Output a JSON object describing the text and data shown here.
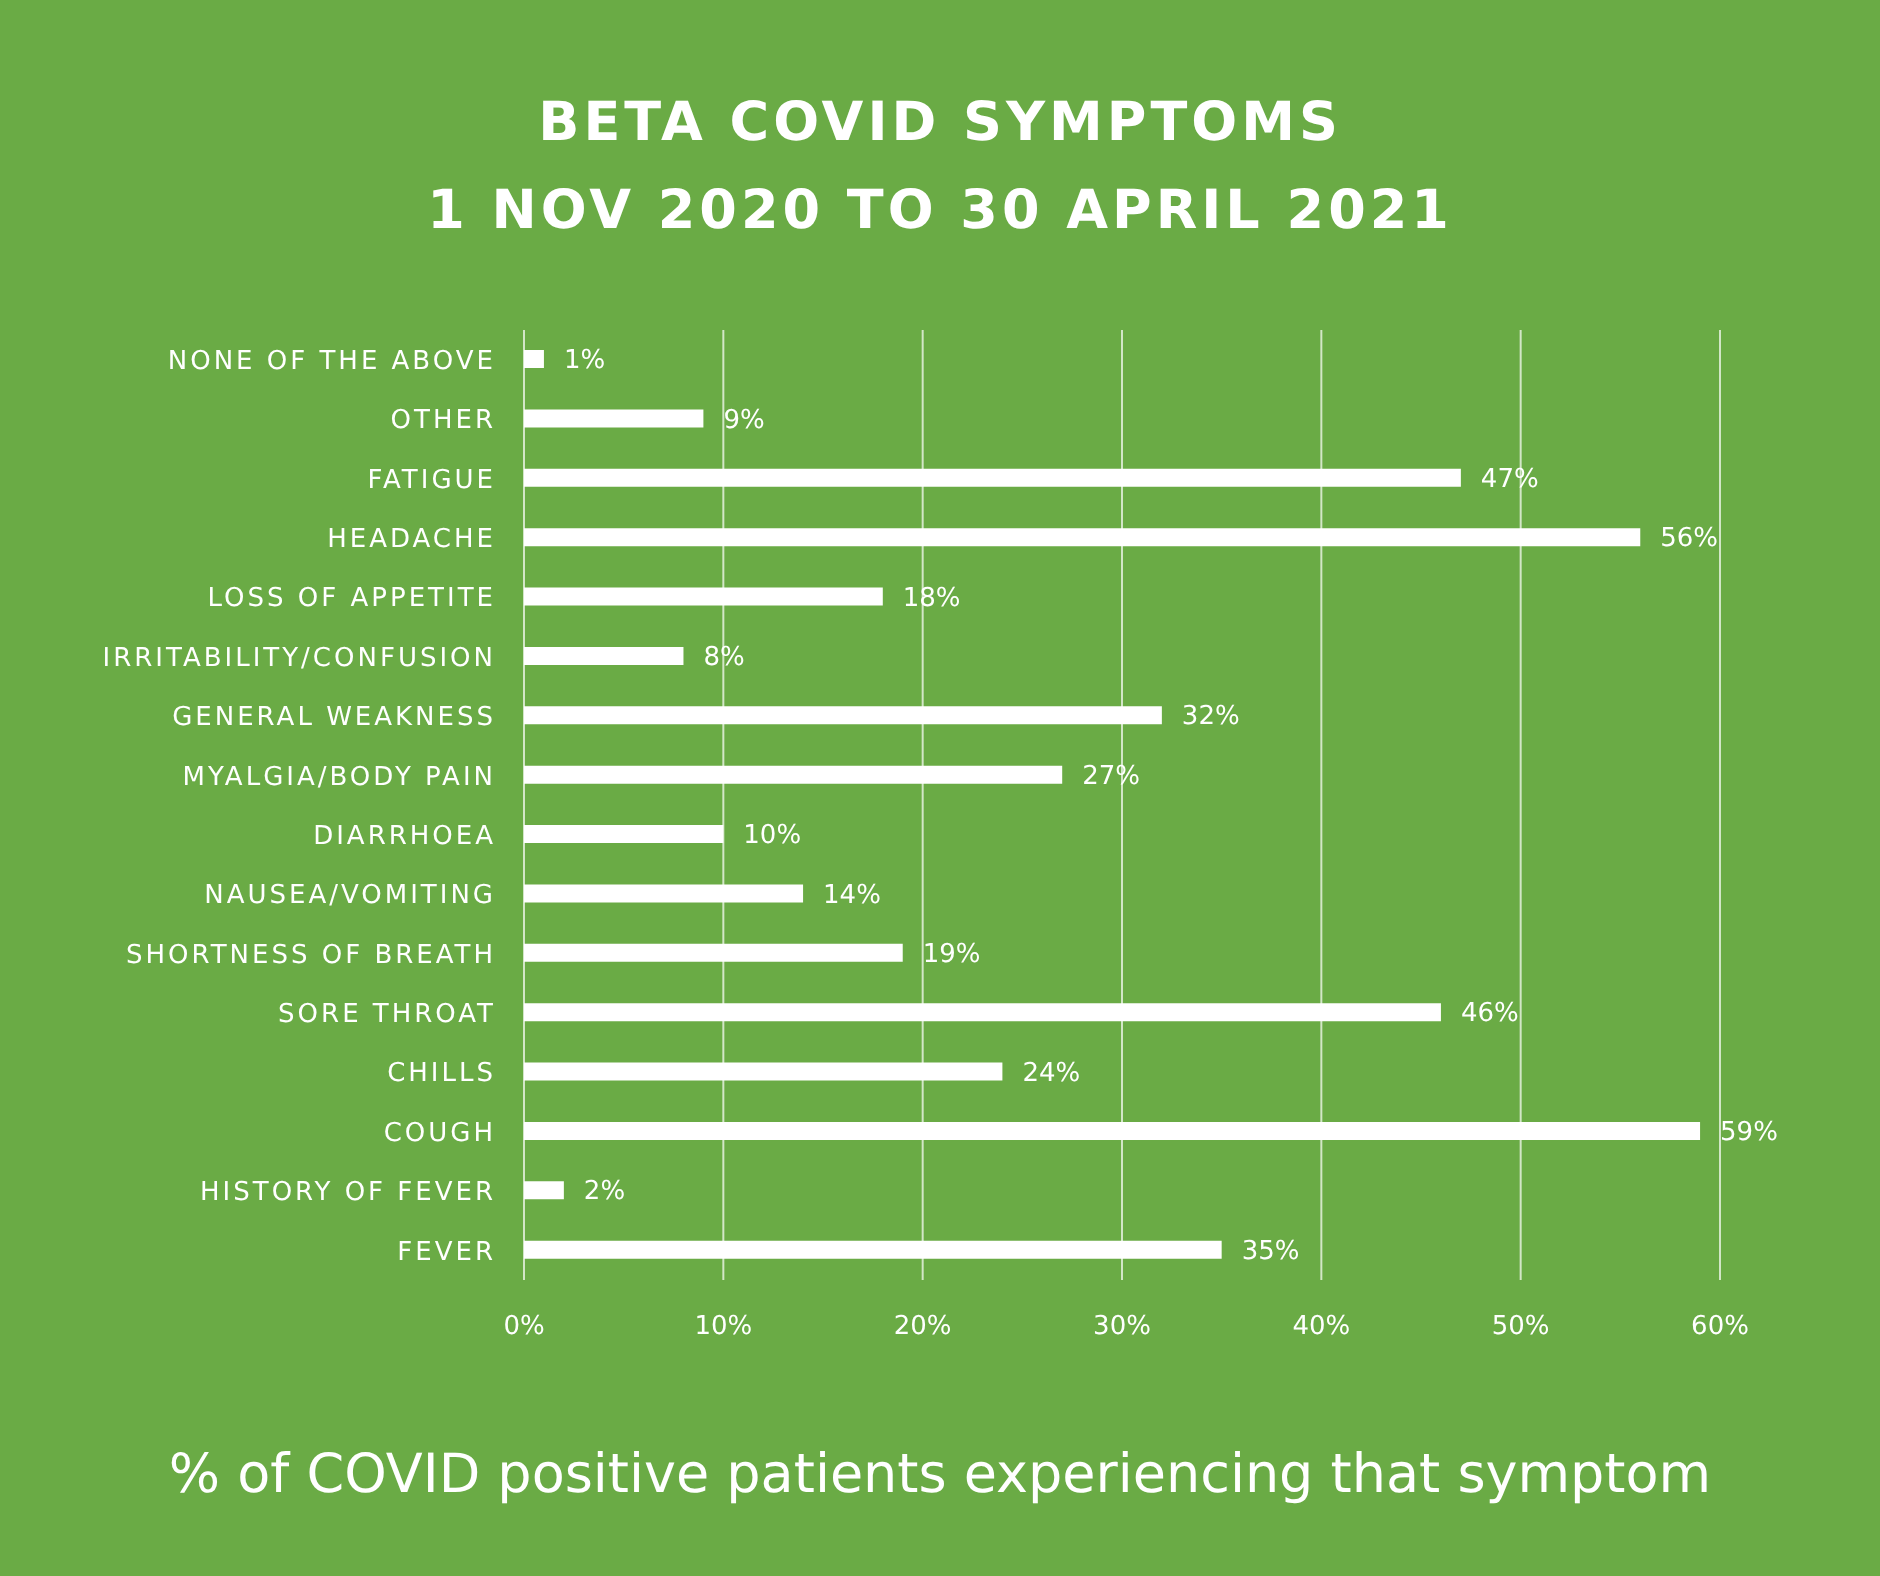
{
  "chart_data": {
    "type": "bar",
    "orientation": "horizontal",
    "title": "BETA COVID SYMPTOMS\n1 NOV 2020 TO 30 APRIL 2021",
    "xlabel": "% of COVID positive patients experiencing that symptom",
    "categories": [
      "NONE OF THE ABOVE",
      "OTHER",
      "FATIGUE",
      "HEADACHE",
      "LOSS OF APPETITE",
      "IRRITABILITY/CONFUSION",
      "GENERAL WEAKNESS",
      "MYALGIA/BODY PAIN",
      "DIARRHOEA",
      "NAUSEA/VOMITING",
      "SHORTNESS OF BREATH",
      "SORE THROAT",
      "CHILLS",
      "COUGH",
      "HISTORY OF FEVER",
      "FEVER"
    ],
    "values": [
      1,
      9,
      47,
      56,
      18,
      8,
      32,
      27,
      10,
      14,
      19,
      46,
      24,
      59,
      2,
      35
    ],
    "value_labels": [
      "1%",
      "9%",
      "47%",
      "56%",
      "18%",
      "8%",
      "32%",
      "27%",
      "10%",
      "14%",
      "19%",
      "46%",
      "24%",
      "59%",
      "2%",
      "35%"
    ],
    "color": "#ffffff",
    "xlim": [
      0,
      60
    ],
    "xticks": [
      {
        "value": 0,
        "label": "0%"
      },
      {
        "value": 10,
        "label": "10%"
      },
      {
        "value": 20,
        "label": "20%"
      },
      {
        "value": 30,
        "label": "30%"
      },
      {
        "value": 40,
        "label": "40%"
      },
      {
        "value": 50,
        "label": "50%"
      },
      {
        "value": 60,
        "label": "60%"
      }
    ],
    "grid": "x"
  }
}
